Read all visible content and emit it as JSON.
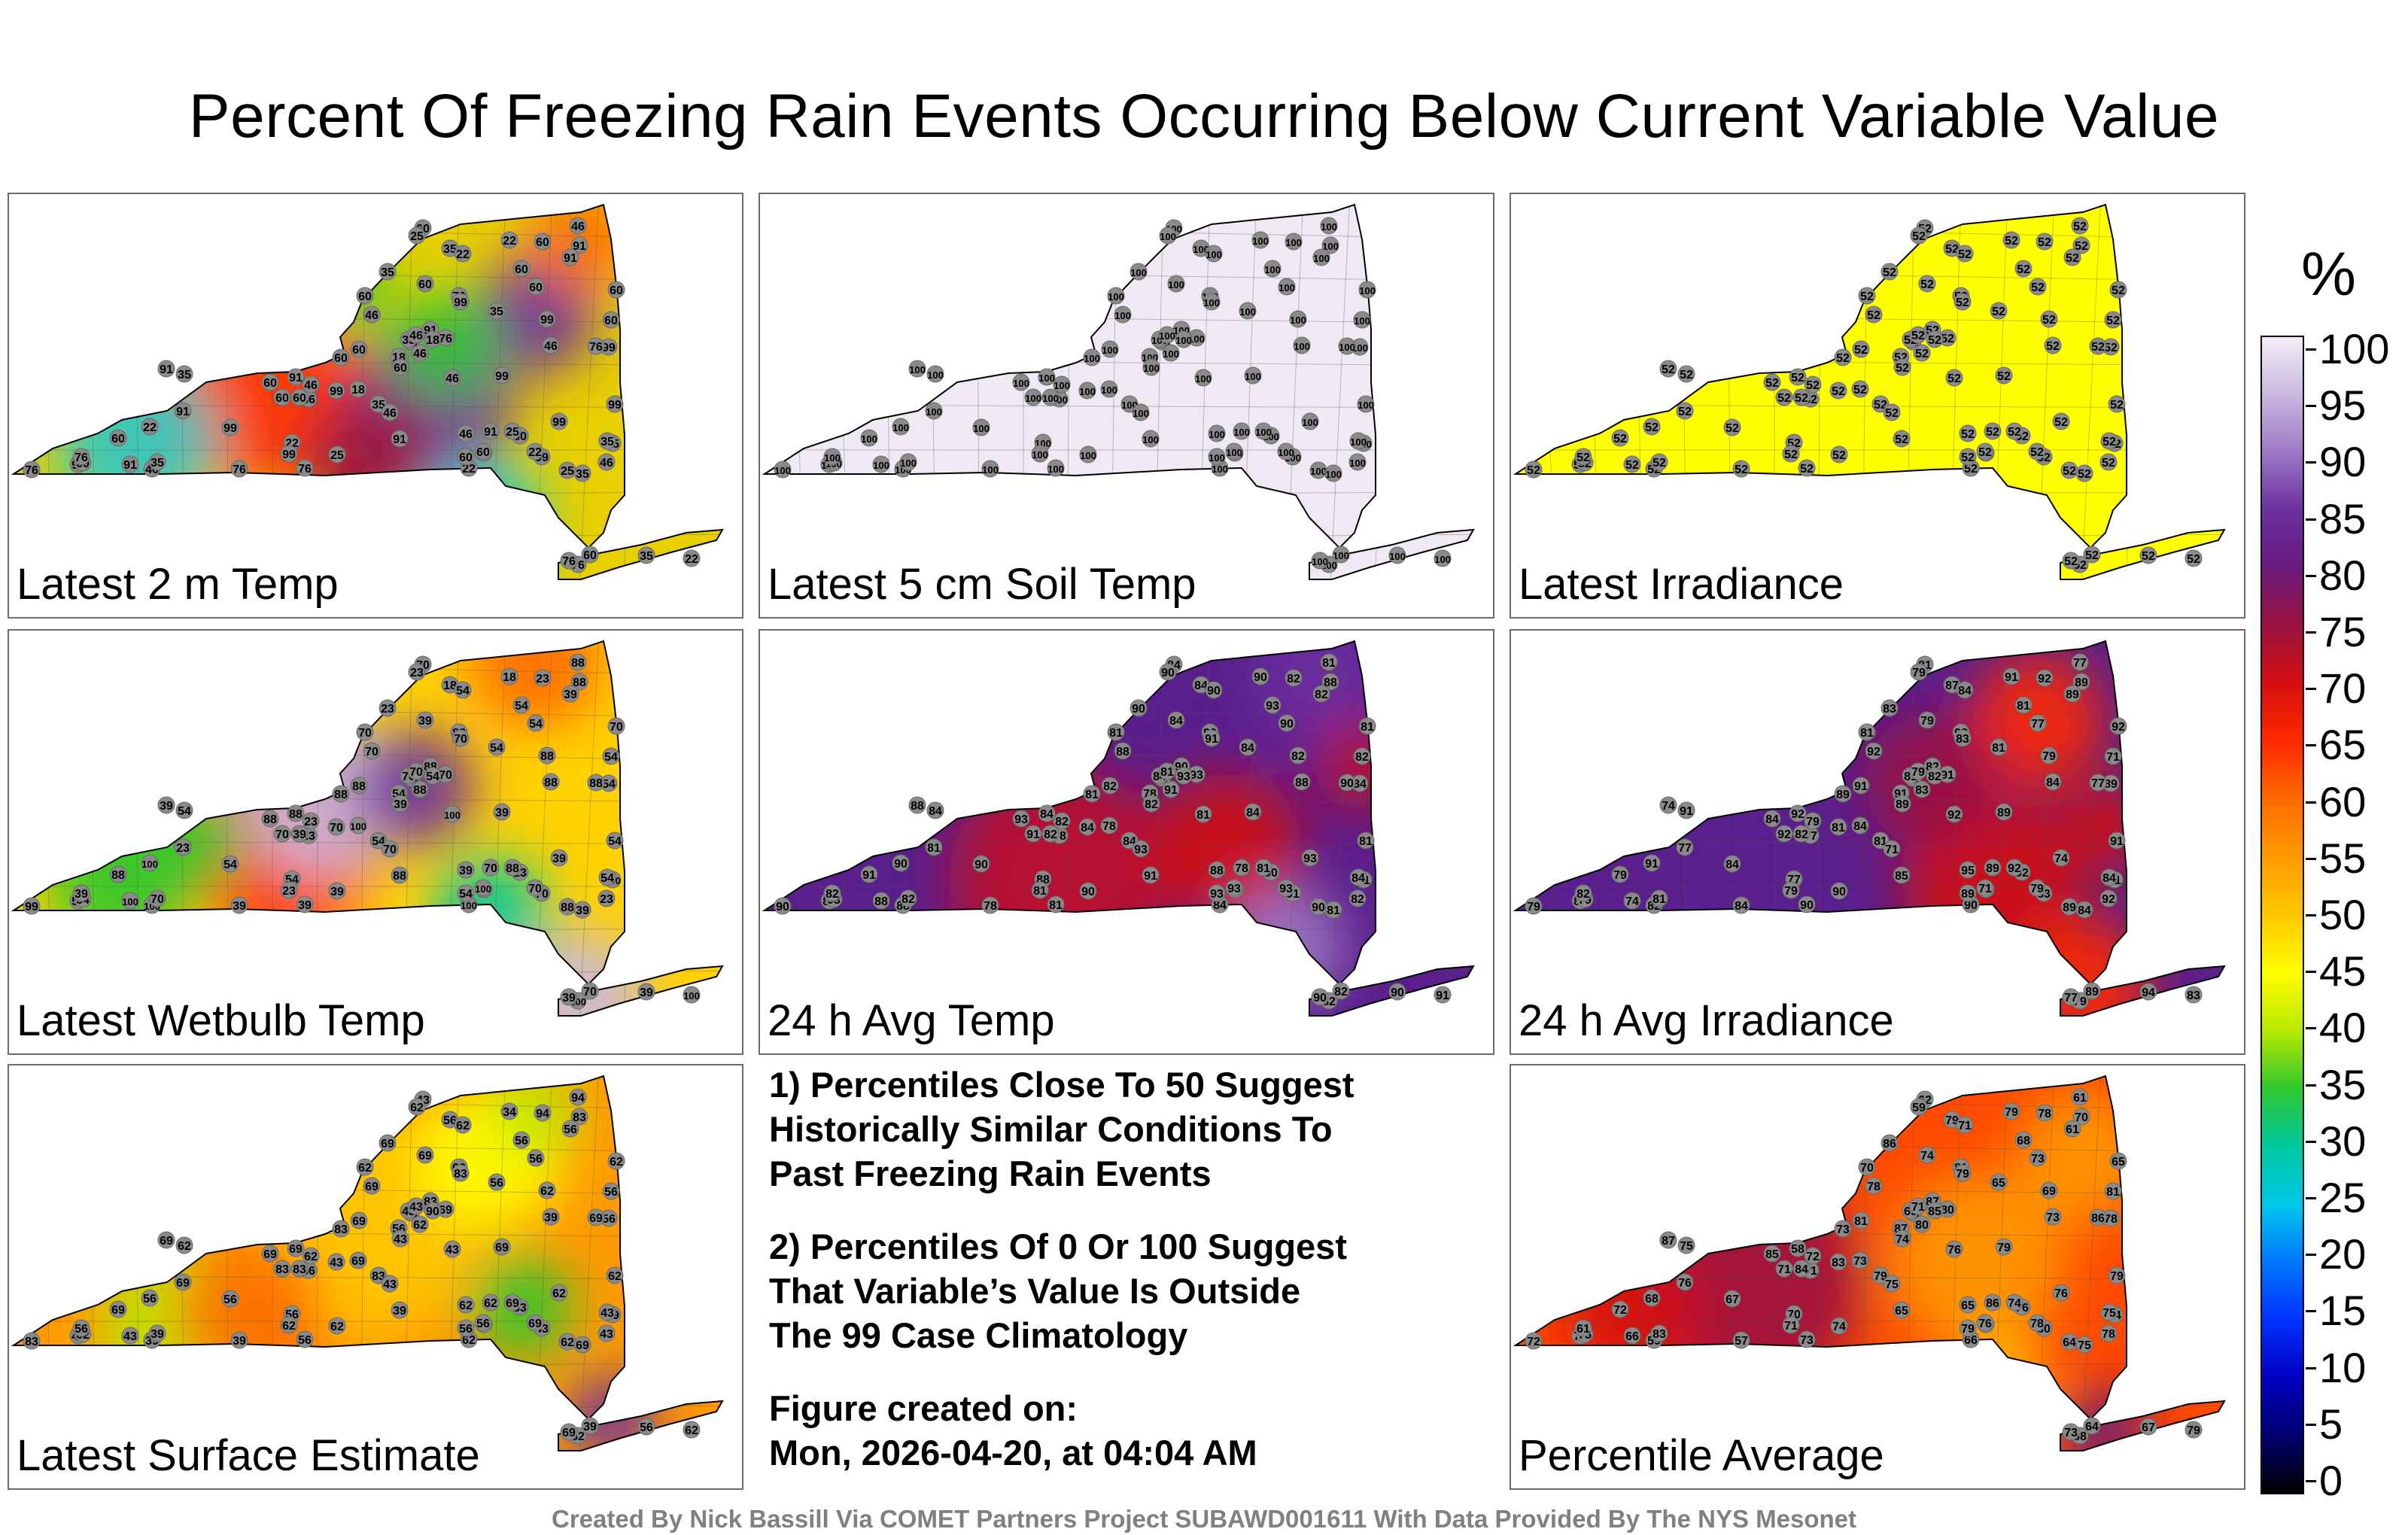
{
  "title": "Percent Of Freezing Rain Events Occurring Below Current Variable Value",
  "panels": [
    {
      "label": "Latest 2 m Temp",
      "theme": "mixed-temp",
      "values": [
        35,
        60,
        76,
        46,
        76,
        60,
        46,
        91,
        22,
        60,
        25,
        22,
        18,
        60,
        60,
        99,
        91,
        35,
        60,
        76,
        91,
        60,
        46,
        99,
        25,
        76,
        60,
        46,
        35,
        22,
        60,
        46,
        35,
        91,
        99,
        60,
        76,
        46,
        91,
        60,
        99,
        22,
        46,
        60,
        99,
        91,
        76,
        35,
        25,
        18,
        46,
        60,
        99,
        35,
        91,
        60,
        22,
        76,
        35,
        91,
        60,
        99,
        46,
        25,
        76,
        60,
        46,
        22,
        91,
        35,
        60,
        99,
        76,
        46,
        99,
        22,
        60,
        35,
        18,
        46,
        25,
        91,
        60,
        35,
        99,
        99,
        76,
        60
      ]
    },
    {
      "label": "Latest 5 cm Soil Temp",
      "theme": "lavender",
      "values": [
        100,
        100,
        100,
        100,
        100,
        100,
        100,
        100,
        100,
        100,
        100,
        100,
        100,
        100,
        100,
        100,
        100,
        100,
        100,
        100,
        100,
        100,
        100,
        100,
        100,
        100,
        100,
        100,
        100,
        100,
        100,
        100,
        100,
        100,
        100,
        100,
        100,
        100,
        100,
        100,
        100,
        100,
        100,
        100,
        100,
        100,
        100,
        100,
        100,
        100,
        100,
        100,
        100,
        100,
        100,
        100,
        100,
        100,
        100,
        100,
        100,
        100,
        100,
        100,
        100,
        100,
        100,
        100,
        100,
        100,
        100,
        100,
        100,
        100,
        100,
        100,
        100,
        100,
        100,
        100,
        100,
        100,
        100,
        100,
        100,
        100,
        100,
        100
      ]
    },
    {
      "label": "Latest Irradiance",
      "theme": "yellow",
      "values": [
        52,
        52,
        52,
        52,
        52,
        52,
        52,
        52,
        52,
        52,
        52,
        52,
        52,
        52,
        52,
        52,
        52,
        52,
        52,
        52,
        52,
        52,
        52,
        52,
        52,
        52,
        52,
        52,
        52,
        52,
        52,
        52,
        52,
        52,
        52,
        52,
        52,
        52,
        52,
        52,
        52,
        52,
        52,
        52,
        52,
        52,
        52,
        52,
        52,
        52,
        52,
        52,
        52,
        52,
        52,
        52,
        52,
        52,
        52,
        52,
        52,
        52,
        52,
        52,
        52,
        52,
        52,
        52,
        52,
        52,
        52,
        52,
        52,
        52,
        52,
        52,
        52,
        52,
        52,
        52,
        52,
        52,
        52,
        52,
        52,
        52,
        52,
        52
      ]
    },
    {
      "label": "Latest Wetbulb Temp",
      "theme": "mixed-wet",
      "values": [
        39,
        70,
        88,
        70,
        54,
        23,
        39,
        88,
        18,
        70,
        88,
        100,
        54,
        39,
        70,
        99,
        88,
        54,
        23,
        39,
        70,
        88,
        100,
        54,
        39,
        70,
        88,
        23,
        18,
        54,
        88,
        100,
        70,
        39,
        54,
        88,
        99,
        23,
        54,
        70,
        39,
        100,
        88,
        54,
        70,
        23,
        39,
        54,
        88,
        100,
        70,
        54,
        39,
        23,
        88,
        70,
        54,
        100,
        39,
        88,
        54,
        70,
        23,
        100,
        39,
        54,
        88,
        70,
        100,
        54,
        39,
        23,
        88,
        70,
        54,
        100,
        39,
        70,
        54,
        88,
        23,
        39,
        100,
        54,
        70,
        88,
        39,
        54
      ]
    },
    {
      "label": "24 h Avg Temp",
      "theme": "purple-red",
      "values": [
        90,
        91,
        90,
        88,
        81,
        90,
        88,
        84,
        90,
        82,
        81,
        84,
        78,
        82,
        81,
        90,
        88,
        84,
        82,
        81,
        78,
        82,
        81,
        84,
        90,
        93,
        81,
        82,
        84,
        90,
        91,
        88,
        84,
        82,
        81,
        93,
        90,
        78,
        82,
        81,
        84,
        90,
        88,
        93,
        91,
        81,
        82,
        84,
        90,
        78,
        81,
        82,
        93,
        90,
        91,
        84,
        88,
        82,
        81,
        90,
        93,
        84,
        82,
        81,
        78,
        90,
        91,
        93,
        88,
        84,
        82,
        81,
        90,
        93,
        90,
        91,
        84,
        82,
        93,
        81,
        90,
        88,
        93,
        84,
        91,
        82,
        90,
        93
      ]
    },
    {
      "label": "24 h Avg Irradiance",
      "theme": "purple-red2",
      "values": [
        94,
        92,
        93,
        92,
        91,
        92,
        95,
        92,
        91,
        89,
        92,
        90,
        91,
        89,
        92,
        90,
        89,
        91,
        92,
        90,
        89,
        91,
        92,
        89,
        90,
        91,
        89,
        92,
        87,
        84,
        79,
        82,
        81,
        89,
        91,
        84,
        79,
        77,
        85,
        81,
        89,
        91,
        84,
        79,
        83,
        77,
        82,
        81,
        89,
        84,
        79,
        71,
        74,
        83,
        85,
        81,
        77,
        79,
        84,
        82,
        89,
        81,
        79,
        71,
        84,
        77,
        83,
        79,
        74,
        81,
        82,
        79,
        77,
        71,
        84,
        83,
        79,
        81,
        82,
        77,
        79,
        74,
        71,
        84,
        83,
        79,
        77,
        81
      ]
    },
    {
      "label": "Latest Surface Estimate",
      "theme": "orange",
      "values": [
        56,
        83,
        62,
        69,
        56,
        33,
        62,
        69,
        34,
        39,
        69,
        62,
        56,
        43,
        62,
        69,
        83,
        62,
        94,
        56,
        62,
        69,
        43,
        56,
        62,
        69,
        83,
        43,
        56,
        62,
        69,
        39,
        43,
        56,
        62,
        69,
        83,
        56,
        43,
        62,
        69,
        56,
        39,
        62,
        43,
        69,
        56,
        83,
        62,
        69,
        43,
        56,
        62,
        69,
        39,
        43,
        56,
        62,
        69,
        83,
        56,
        43,
        62,
        69,
        39,
        56,
        62,
        69,
        43,
        56,
        83,
        62,
        69,
        43,
        56,
        62,
        69,
        39,
        90,
        94,
        62,
        69,
        56,
        43,
        83,
        62,
        69,
        56
      ]
    },
    {
      "label": "Percentile Average",
      "theme": "red-orange",
      "values": [
        67,
        71,
        81,
        78,
        59,
        76,
        65,
        58,
        79,
        64,
        74,
        66,
        87,
        74,
        65,
        83,
        70,
        75,
        78,
        73,
        86,
        81,
        76,
        78,
        74,
        80,
        73,
        78,
        79,
        71,
        72,
        59,
        65,
        61,
        79,
        85,
        72,
        71,
        75,
        70,
        79,
        68,
        73,
        75,
        80,
        76,
        61,
        79,
        64,
        73,
        71,
        81,
        76,
        86,
        65,
        62,
        70,
        68,
        75,
        87,
        79,
        83,
        72,
        64,
        57,
        73,
        80,
        78,
        66,
        65,
        84,
        71,
        86,
        75,
        67,
        79,
        74,
        83,
        85,
        61,
        59,
        87,
        76,
        75,
        79,
        69,
        73,
        68
      ]
    }
  ],
  "notes": {
    "line1": "1) Percentiles Close To 50 Suggest",
    "line2": "Historically Similar Conditions To",
    "line3": "Past Freezing Rain Events",
    "line4": "2) Percentiles Of 0 Or 100 Suggest",
    "line5": "That Variable’s Value Is Outside",
    "line6": "The 99 Case Climatology",
    "line7": "Figure created on:",
    "line8": "Mon, 2026-04-20, at 04:04 AM"
  },
  "footer": "Created By Nick Bassill Via COMET Partners Project SUBAWD001611 With Data Provided By The NYS Mesonet",
  "colorbar": {
    "unit": "%",
    "ticks": [
      "100",
      "95",
      "90",
      "85",
      "80",
      "75",
      "70",
      "65",
      "60",
      "55",
      "50",
      "45",
      "40",
      "35",
      "30",
      "25",
      "20",
      "15",
      "10",
      "5",
      "0"
    ],
    "colors": [
      "#f2eef6",
      "#c9b8df",
      "#9d79c4",
      "#6b2fa0",
      "#6a1a7a",
      "#9b1240",
      "#d40f10",
      "#ff2a00",
      "#ff6a00",
      "#ff9a00",
      "#ffc800",
      "#ffff00",
      "#b8e800",
      "#2fc82f",
      "#00c8a0",
      "#00c8e8",
      "#0078ff",
      "#0032ff",
      "#0000c0",
      "#000070",
      "#000000"
    ]
  }
}
